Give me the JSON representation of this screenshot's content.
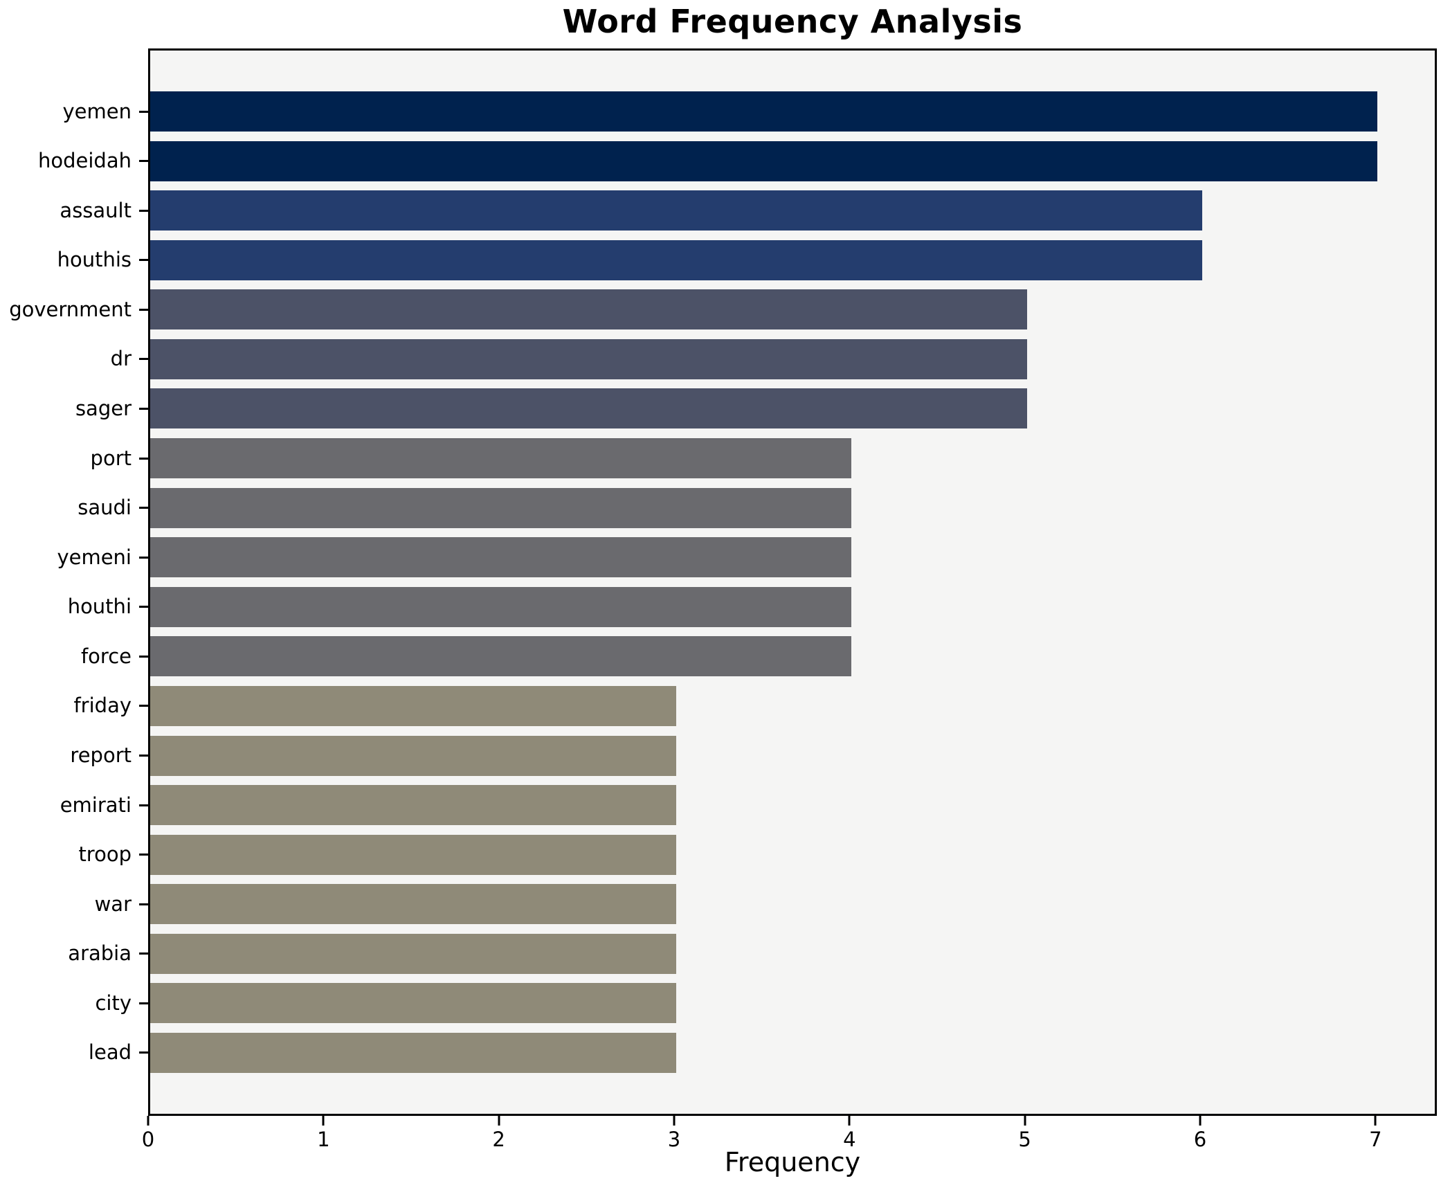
{
  "title": "Word Frequency Analysis",
  "chart_data": {
    "type": "bar",
    "orientation": "horizontal",
    "title": "Word Frequency Analysis",
    "xlabel": "Frequency",
    "ylabel": "",
    "categories": [
      "yemen",
      "hodeidah",
      "assault",
      "houthis",
      "government",
      "dr",
      "sager",
      "port",
      "saudi",
      "yemeni",
      "houthi",
      "force",
      "friday",
      "report",
      "emirati",
      "troop",
      "war",
      "arabia",
      "city",
      "lead"
    ],
    "values": [
      7,
      7,
      6,
      6,
      5,
      5,
      5,
      4,
      4,
      4,
      4,
      4,
      3,
      3,
      3,
      3,
      3,
      3,
      3,
      3
    ],
    "bar_colors": [
      "#00224e",
      "#00224e",
      "#243d6e",
      "#243d6e",
      "#4c5267",
      "#4c5267",
      "#4c5267",
      "#6a6a6e",
      "#6a6a6e",
      "#6a6a6e",
      "#6a6a6e",
      "#6a6a6e",
      "#8f8a78",
      "#8f8a78",
      "#8f8a78",
      "#8f8a78",
      "#8f8a78",
      "#8f8a78",
      "#8f8a78",
      "#8f8a78"
    ],
    "value_color_map": {
      "7": "#00224e",
      "6": "#243d6e",
      "5": "#4c5267",
      "4": "#6a6a6e",
      "3": "#8f8a78"
    },
    "xlim": [
      0,
      7.35
    ],
    "xticks": [
      0,
      1,
      2,
      3,
      4,
      5,
      6,
      7
    ],
    "grid": false,
    "legend": "none",
    "plot_background": "#f5f5f4",
    "figure_background": "#ffffff",
    "spine_color": "#000000"
  }
}
